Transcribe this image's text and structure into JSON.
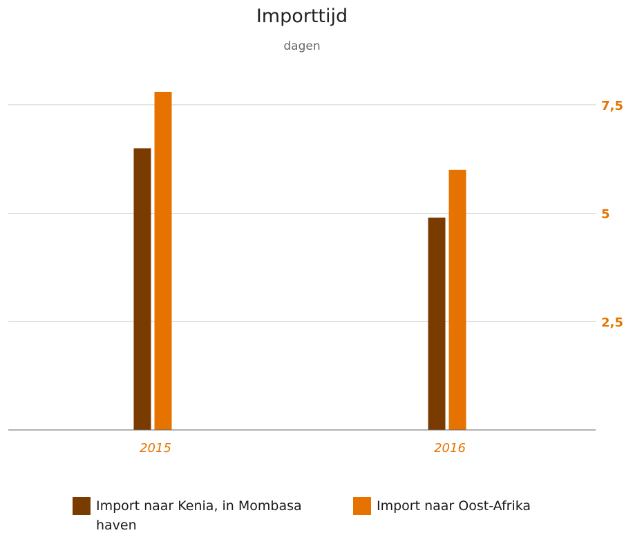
{
  "chart_data": {
    "type": "bar",
    "title": "Importtijd",
    "subtitle": "dagen",
    "categories": [
      "2015",
      "2016"
    ],
    "series": [
      {
        "name": "Import naar Kenia, in Mombasa haven",
        "color": "#7a3b00",
        "values": [
          6.5,
          4.9
        ]
      },
      {
        "name": "Import naar Oost-Afrika",
        "color": "#e67300",
        "values": [
          7.8,
          6.0
        ]
      }
    ],
    "yticks": [
      "7,5",
      "5",
      "2,5"
    ],
    "ytick_values": [
      7.5,
      5,
      2.5
    ],
    "ylim": [
      0,
      8
    ],
    "grid": true,
    "legend_position": "bottom",
    "colors": {
      "axis_text": "#e67300",
      "grid": "#cccccc",
      "baseline": "#666666"
    }
  }
}
